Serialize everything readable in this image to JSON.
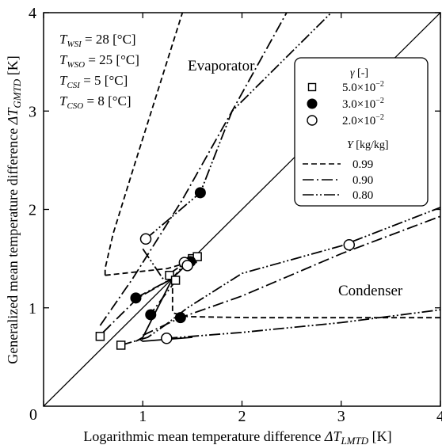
{
  "chart_data": {
    "type": "scatter",
    "x_axis": {
      "label_prefix": "Logarithmic mean temperature difference ",
      "label_symbol": "ΔT",
      "label_sub": "LMTD",
      "label_unit": " [K]",
      "range": [
        0,
        4
      ],
      "ticks": [
        0,
        1,
        2,
        3,
        4
      ]
    },
    "y_axis": {
      "label_prefix": "Generalized mean temperature difference ",
      "label_symbol": "ΔT",
      "label_sub": "GMTD",
      "label_unit": " [K]",
      "range": [
        0,
        4
      ],
      "ticks": [
        1,
        2,
        3,
        4
      ]
    },
    "origin_label": "0",
    "conditions": [
      {
        "sym": "T",
        "sub": "WSI",
        "rest": " = 28 [°C]"
      },
      {
        "sym": "T",
        "sub": "WSO",
        "rest": " = 25 [°C]"
      },
      {
        "sym": "T",
        "sub": "CSI",
        "rest": " = 5 [°C]"
      },
      {
        "sym": "T",
        "sub": "CSO",
        "rest": " = 8 [°C]"
      }
    ],
    "region_labels": {
      "evaporator": "Evaporator",
      "condenser": "Condenser"
    },
    "legend_gamma": {
      "title_symbol": "γ",
      "title_unit": " [-]",
      "entries": [
        {
          "marker": "open-square",
          "mantissa": "5.0",
          "exponent": "−2"
        },
        {
          "marker": "filled-circle",
          "mantissa": "3.0",
          "exponent": "−2"
        },
        {
          "marker": "open-circle",
          "mantissa": "2.0",
          "exponent": "−2"
        }
      ]
    },
    "legend_Y": {
      "title_symbol": "Y",
      "title_unit": " [kg/kg]",
      "entries": [
        {
          "dash": "dashed",
          "label": "0.99"
        },
        {
          "dash": "dash-dot",
          "label": "0.90"
        },
        {
          "dash": "dash-dot-dot",
          "label": "0.80"
        }
      ]
    },
    "diagonal": [
      [
        0,
        0
      ],
      [
        4,
        4
      ]
    ],
    "curves": [
      {
        "Y": "0.99",
        "dash": "dashed",
        "region": "evaporator",
        "points": [
          [
            0.62,
            1.33
          ],
          [
            0.62,
            1.4
          ],
          [
            0.7,
            1.75
          ],
          [
            0.9,
            2.4
          ],
          [
            1.15,
            3.2
          ],
          [
            1.4,
            4.0
          ]
        ]
      },
      {
        "Y": "0.99",
        "dash": "dashed",
        "region": "evaporator",
        "points": [
          [
            0.62,
            1.33
          ],
          [
            1.25,
            1.4
          ],
          [
            1.42,
            1.45
          ],
          [
            1.55,
            1.52
          ]
        ]
      },
      {
        "Y": "0.99",
        "dash": "dashed",
        "region": "condenser",
        "points": [
          [
            1.3,
            1.2
          ],
          [
            1.3,
            0.95
          ],
          [
            1.45,
            0.91
          ],
          [
            2.1,
            0.9
          ],
          [
            4.0,
            0.9
          ]
        ]
      },
      {
        "Y": "0.90",
        "dash": "dash-dot",
        "region": "evaporator",
        "points": [
          [
            0.57,
            0.82
          ],
          [
            0.9,
            1.3
          ],
          [
            1.4,
            2.1
          ],
          [
            1.9,
            3.0
          ],
          [
            2.45,
            4.0
          ]
        ]
      },
      {
        "Y": "0.90",
        "dash": "dash-dot",
        "region": "evaporator",
        "points": [
          [
            0.6,
            0.75
          ],
          [
            0.95,
            1.1
          ],
          [
            1.3,
            1.3
          ],
          [
            1.5,
            1.5
          ]
        ]
      },
      {
        "Y": "0.90",
        "dash": "dash-dot",
        "region": "evaporator",
        "points": [
          [
            0.93,
            1.1
          ],
          [
            1.3,
            1.3
          ],
          [
            1.45,
            1.48
          ]
        ]
      },
      {
        "Y": "0.90",
        "dash": "dash-dot",
        "region": "condenser",
        "points": [
          [
            1.05,
            0.9
          ],
          [
            1.2,
            1.1
          ],
          [
            1.35,
            1.3
          ]
        ]
      },
      {
        "Y": "0.90",
        "dash": "dash-dot",
        "region": "condenser",
        "points": [
          [
            1.0,
            0.72
          ],
          [
            1.38,
            0.9
          ],
          [
            2.0,
            1.12
          ],
          [
            3.0,
            1.55
          ],
          [
            4.0,
            1.93
          ]
        ]
      },
      {
        "Y": "0.80",
        "dash": "dash-dot-dot",
        "region": "evaporator",
        "points": [
          [
            1.03,
            1.7
          ],
          [
            1.58,
            2.17
          ],
          [
            1.9,
            3.0
          ],
          [
            2.9,
            4.0
          ]
        ]
      },
      {
        "Y": "0.80",
        "dash": "dash-dot-dot",
        "region": "evaporator",
        "points": [
          [
            1.0,
            1.6
          ],
          [
            1.2,
            1.3
          ],
          [
            1.42,
            1.45
          ]
        ]
      },
      {
        "Y": "0.80",
        "dash": "dash-dot-dot",
        "region": "condenser",
        "points": [
          [
            0.78,
            0.62
          ],
          [
            1.05,
            0.7
          ],
          [
            1.22,
            0.82
          ],
          [
            1.45,
            1.0
          ],
          [
            2.0,
            1.35
          ],
          [
            3.0,
            1.63
          ],
          [
            4.0,
            2.02
          ]
        ]
      },
      {
        "Y": "0.80",
        "dash": "dash-dot-dot",
        "region": "condenser",
        "points": [
          [
            1.24,
            0.69
          ],
          [
            2.0,
            0.75
          ],
          [
            3.0,
            0.85
          ],
          [
            4.0,
            0.98
          ]
        ]
      },
      {
        "Y": "solid",
        "dash": "solid",
        "region": "condenser",
        "points": [
          [
            1.3,
            1.3
          ],
          [
            1.0,
            0.7
          ],
          [
            0.93,
            0.66
          ],
          [
            0.97,
            0.68
          ],
          [
            1.0,
            0.66
          ],
          [
            1.5,
            0.7
          ]
        ]
      }
    ],
    "series": [
      {
        "marker": "open-square",
        "points": [
          [
            0.57,
            0.71
          ],
          [
            0.78,
            0.62
          ],
          [
            1.27,
            1.33
          ],
          [
            1.33,
            1.28
          ],
          [
            1.5,
            1.5
          ],
          [
            1.55,
            1.52
          ]
        ]
      },
      {
        "marker": "filled-circle",
        "points": [
          [
            0.93,
            1.1
          ],
          [
            1.08,
            0.93
          ],
          [
            1.38,
            0.9
          ],
          [
            1.48,
            1.47
          ],
          [
            1.58,
            2.17
          ]
        ]
      },
      {
        "marker": "open-circle",
        "points": [
          [
            1.03,
            1.7
          ],
          [
            1.24,
            0.69
          ],
          [
            1.42,
            1.46
          ],
          [
            1.45,
            1.43
          ],
          [
            3.08,
            1.64
          ]
        ]
      }
    ]
  }
}
